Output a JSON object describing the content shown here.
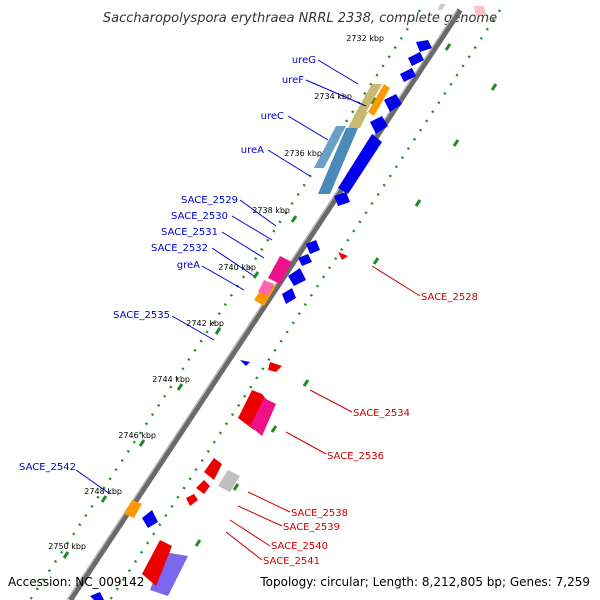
{
  "title": "Saccharopolyspora erythraea NRRL 2338, complete genome",
  "footer": {
    "accession": "Accession: NC_009142",
    "topology": "Topology: circular; Length: 8,212,805 bp; Genes: 7,259"
  },
  "colors": {
    "forward_gene": "#0000ee",
    "reverse_gene": "#ee0000",
    "forward_label": "#0000cc",
    "reverse_label": "#cc0000",
    "backbone": "#808080",
    "tick_mark": "#228b22"
  },
  "ticks": [
    "2732 kbp",
    "2734 kbp",
    "2736 kbp",
    "2738 kbp",
    "2740 kbp",
    "2742 kbp",
    "2744 kbp",
    "2746 kbp",
    "2748 kbp",
    "2750 kbp"
  ],
  "forward_labels": [
    "ureG",
    "ureF",
    "ureC",
    "ureA",
    "SACE_2529",
    "SACE_2530",
    "SACE_2531",
    "SACE_2532",
    "greA",
    "SACE_2535",
    "SACE_2542"
  ],
  "reverse_labels": [
    "SACE_2528",
    "SACE_2534",
    "SACE_2536",
    "SACE_2538",
    "SACE_2539",
    "SACE_2540",
    "SACE_2541"
  ]
}
